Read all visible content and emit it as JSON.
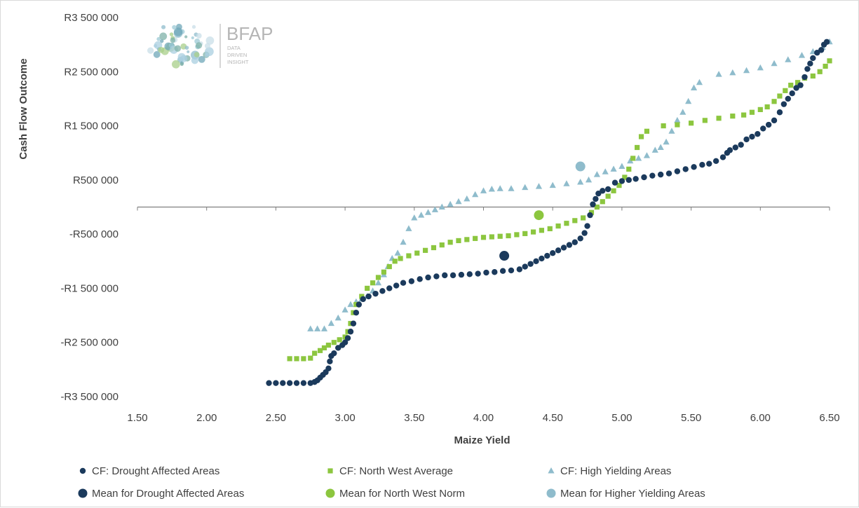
{
  "logo": {
    "brand": "BFAP",
    "tagline": [
      "DATA",
      "DRIVEN",
      "INSIGHT"
    ]
  },
  "chart_data": {
    "type": "scatter",
    "title": "",
    "xlabel": "Maize Yield",
    "ylabel": "Cash Flow Outcome",
    "xlim": [
      1.5,
      6.5
    ],
    "ylim": [
      -3500000,
      3500000
    ],
    "x_ticks": [
      1.5,
      2.0,
      2.5,
      3.0,
      3.5,
      4.0,
      4.5,
      5.0,
      5.5,
      6.0,
      6.5
    ],
    "x_tick_labels": [
      "1.50",
      "2.00",
      "2.50",
      "3.00",
      "3.50",
      "4.00",
      "4.50",
      "5.00",
      "5.50",
      "6.00",
      "6.50"
    ],
    "y_ticks": [
      3500000,
      2500000,
      1500000,
      500000,
      -500000,
      -1500000,
      -2500000,
      -3500000
    ],
    "y_tick_labels": [
      "R3 500 000",
      "R2 500 000",
      "R1 500 000",
      "R500 000",
      "-R500 000",
      "-R1 500 000",
      "-R2 500 000",
      "-R3 500 000"
    ],
    "grid": false,
    "legend_position": "bottom",
    "colors": {
      "drought": "#1b3a5c",
      "northwest": "#8cc63f",
      "high": "#8fbccc"
    },
    "series": [
      {
        "name": "CF: Drought Affected Areas",
        "marker": "circle-small",
        "color": "#1b3a5c",
        "points": [
          [
            2.45,
            -3250000
          ],
          [
            2.5,
            -3250000
          ],
          [
            2.55,
            -3250000
          ],
          [
            2.6,
            -3250000
          ],
          [
            2.65,
            -3250000
          ],
          [
            2.7,
            -3250000
          ],
          [
            2.75,
            -3250000
          ],
          [
            2.78,
            -3230000
          ],
          [
            2.8,
            -3200000
          ],
          [
            2.82,
            -3150000
          ],
          [
            2.84,
            -3100000
          ],
          [
            2.86,
            -3050000
          ],
          [
            2.88,
            -2980000
          ],
          [
            2.89,
            -2850000
          ],
          [
            2.9,
            -2750000
          ],
          [
            2.92,
            -2700000
          ],
          [
            2.95,
            -2600000
          ],
          [
            2.98,
            -2550000
          ],
          [
            3.0,
            -2500000
          ],
          [
            3.02,
            -2420000
          ],
          [
            3.04,
            -2300000
          ],
          [
            3.06,
            -2150000
          ],
          [
            3.08,
            -1950000
          ],
          [
            3.1,
            -1800000
          ],
          [
            3.13,
            -1700000
          ],
          [
            3.17,
            -1650000
          ],
          [
            3.22,
            -1600000
          ],
          [
            3.27,
            -1550000
          ],
          [
            3.32,
            -1500000
          ],
          [
            3.37,
            -1450000
          ],
          [
            3.42,
            -1400000
          ],
          [
            3.48,
            -1370000
          ],
          [
            3.54,
            -1330000
          ],
          [
            3.6,
            -1300000
          ],
          [
            3.66,
            -1280000
          ],
          [
            3.72,
            -1260000
          ],
          [
            3.78,
            -1260000
          ],
          [
            3.84,
            -1250000
          ],
          [
            3.9,
            -1240000
          ],
          [
            3.96,
            -1230000
          ],
          [
            4.02,
            -1210000
          ],
          [
            4.08,
            -1200000
          ],
          [
            4.14,
            -1180000
          ],
          [
            4.2,
            -1170000
          ],
          [
            4.26,
            -1150000
          ],
          [
            4.3,
            -1100000
          ],
          [
            4.34,
            -1050000
          ],
          [
            4.38,
            -1000000
          ],
          [
            4.42,
            -950000
          ],
          [
            4.46,
            -900000
          ],
          [
            4.5,
            -850000
          ],
          [
            4.54,
            -800000
          ],
          [
            4.58,
            -750000
          ],
          [
            4.62,
            -700000
          ],
          [
            4.66,
            -650000
          ],
          [
            4.7,
            -580000
          ],
          [
            4.73,
            -480000
          ],
          [
            4.75,
            -350000
          ],
          [
            4.77,
            -150000
          ],
          [
            4.79,
            50000
          ],
          [
            4.81,
            150000
          ],
          [
            4.83,
            250000
          ],
          [
            4.86,
            300000
          ],
          [
            4.9,
            330000
          ],
          [
            4.95,
            450000
          ],
          [
            5.0,
            480000
          ],
          [
            5.05,
            500000
          ],
          [
            5.1,
            520000
          ],
          [
            5.16,
            550000
          ],
          [
            5.22,
            580000
          ],
          [
            5.28,
            600000
          ],
          [
            5.34,
            620000
          ],
          [
            5.4,
            660000
          ],
          [
            5.46,
            700000
          ],
          [
            5.52,
            740000
          ],
          [
            5.58,
            780000
          ],
          [
            5.63,
            800000
          ],
          [
            5.68,
            850000
          ],
          [
            5.73,
            920000
          ],
          [
            5.76,
            1000000
          ],
          [
            5.78,
            1050000
          ],
          [
            5.82,
            1100000
          ],
          [
            5.86,
            1150000
          ],
          [
            5.9,
            1250000
          ],
          [
            5.94,
            1300000
          ],
          [
            5.98,
            1350000
          ],
          [
            6.02,
            1450000
          ],
          [
            6.06,
            1520000
          ],
          [
            6.1,
            1600000
          ],
          [
            6.14,
            1750000
          ],
          [
            6.17,
            1900000
          ],
          [
            6.2,
            2000000
          ],
          [
            6.23,
            2100000
          ],
          [
            6.26,
            2200000
          ],
          [
            6.29,
            2250000
          ],
          [
            6.32,
            2400000
          ],
          [
            6.34,
            2550000
          ],
          [
            6.36,
            2650000
          ],
          [
            6.38,
            2750000
          ],
          [
            6.41,
            2850000
          ],
          [
            6.44,
            2900000
          ],
          [
            6.46,
            3000000
          ],
          [
            6.48,
            3050000
          ]
        ]
      },
      {
        "name": "CF: North West Average",
        "marker": "square-small",
        "color": "#8cc63f",
        "points": [
          [
            2.6,
            -2800000
          ],
          [
            2.65,
            -2800000
          ],
          [
            2.7,
            -2800000
          ],
          [
            2.75,
            -2790000
          ],
          [
            2.78,
            -2700000
          ],
          [
            2.82,
            -2650000
          ],
          [
            2.85,
            -2600000
          ],
          [
            2.88,
            -2550000
          ],
          [
            2.92,
            -2500000
          ],
          [
            2.96,
            -2450000
          ],
          [
            3.0,
            -2400000
          ],
          [
            3.02,
            -2300000
          ],
          [
            3.04,
            -2150000
          ],
          [
            3.06,
            -1950000
          ],
          [
            3.08,
            -1800000
          ],
          [
            3.12,
            -1650000
          ],
          [
            3.16,
            -1500000
          ],
          [
            3.2,
            -1400000
          ],
          [
            3.24,
            -1300000
          ],
          [
            3.28,
            -1200000
          ],
          [
            3.32,
            -1100000
          ],
          [
            3.36,
            -1000000
          ],
          [
            3.4,
            -950000
          ],
          [
            3.46,
            -900000
          ],
          [
            3.52,
            -850000
          ],
          [
            3.58,
            -800000
          ],
          [
            3.64,
            -750000
          ],
          [
            3.7,
            -700000
          ],
          [
            3.76,
            -650000
          ],
          [
            3.82,
            -620000
          ],
          [
            3.88,
            -600000
          ],
          [
            3.94,
            -580000
          ],
          [
            4.0,
            -560000
          ],
          [
            4.06,
            -550000
          ],
          [
            4.12,
            -540000
          ],
          [
            4.18,
            -530000
          ],
          [
            4.24,
            -510000
          ],
          [
            4.3,
            -490000
          ],
          [
            4.36,
            -460000
          ],
          [
            4.42,
            -430000
          ],
          [
            4.48,
            -400000
          ],
          [
            4.54,
            -350000
          ],
          [
            4.6,
            -300000
          ],
          [
            4.66,
            -250000
          ],
          [
            4.72,
            -200000
          ],
          [
            4.78,
            -100000
          ],
          [
            4.82,
            0
          ],
          [
            4.86,
            100000
          ],
          [
            4.9,
            200000
          ],
          [
            4.94,
            300000
          ],
          [
            4.98,
            400000
          ],
          [
            5.02,
            550000
          ],
          [
            5.05,
            700000
          ],
          [
            5.08,
            900000
          ],
          [
            5.11,
            1100000
          ],
          [
            5.14,
            1300000
          ],
          [
            5.18,
            1400000
          ],
          [
            5.3,
            1500000
          ],
          [
            5.4,
            1520000
          ],
          [
            5.5,
            1550000
          ],
          [
            5.6,
            1600000
          ],
          [
            5.7,
            1640000
          ],
          [
            5.8,
            1680000
          ],
          [
            5.88,
            1700000
          ],
          [
            5.94,
            1750000
          ],
          [
            6.0,
            1800000
          ],
          [
            6.05,
            1850000
          ],
          [
            6.1,
            1950000
          ],
          [
            6.14,
            2050000
          ],
          [
            6.18,
            2150000
          ],
          [
            6.22,
            2250000
          ],
          [
            6.27,
            2300000
          ],
          [
            6.32,
            2380000
          ],
          [
            6.38,
            2420000
          ],
          [
            6.43,
            2500000
          ],
          [
            6.47,
            2600000
          ],
          [
            6.5,
            2700000
          ]
        ]
      },
      {
        "name": "CF: High Yielding Areas",
        "marker": "triangle-small",
        "color": "#8fbccc",
        "points": [
          [
            2.75,
            -2250000
          ],
          [
            2.8,
            -2250000
          ],
          [
            2.85,
            -2250000
          ],
          [
            2.9,
            -2150000
          ],
          [
            2.95,
            -2050000
          ],
          [
            3.0,
            -1900000
          ],
          [
            3.04,
            -1800000
          ],
          [
            3.08,
            -1750000
          ],
          [
            3.12,
            -1700000
          ],
          [
            3.16,
            -1650000
          ],
          [
            3.2,
            -1550000
          ],
          [
            3.24,
            -1400000
          ],
          [
            3.28,
            -1250000
          ],
          [
            3.31,
            -1100000
          ],
          [
            3.34,
            -950000
          ],
          [
            3.38,
            -850000
          ],
          [
            3.42,
            -650000
          ],
          [
            3.46,
            -400000
          ],
          [
            3.5,
            -200000
          ],
          [
            3.55,
            -150000
          ],
          [
            3.6,
            -100000
          ],
          [
            3.65,
            -50000
          ],
          [
            3.7,
            0
          ],
          [
            3.76,
            50000
          ],
          [
            3.82,
            100000
          ],
          [
            3.88,
            150000
          ],
          [
            3.94,
            230000
          ],
          [
            4.0,
            300000
          ],
          [
            4.06,
            330000
          ],
          [
            4.12,
            340000
          ],
          [
            4.2,
            340000
          ],
          [
            4.3,
            360000
          ],
          [
            4.4,
            380000
          ],
          [
            4.5,
            400000
          ],
          [
            4.6,
            430000
          ],
          [
            4.7,
            460000
          ],
          [
            4.76,
            500000
          ],
          [
            4.82,
            600000
          ],
          [
            4.88,
            650000
          ],
          [
            4.94,
            700000
          ],
          [
            5.0,
            750000
          ],
          [
            5.06,
            850000
          ],
          [
            5.12,
            900000
          ],
          [
            5.18,
            950000
          ],
          [
            5.24,
            1050000
          ],
          [
            5.28,
            1100000
          ],
          [
            5.32,
            1200000
          ],
          [
            5.36,
            1400000
          ],
          [
            5.4,
            1600000
          ],
          [
            5.44,
            1750000
          ],
          [
            5.48,
            1950000
          ],
          [
            5.52,
            2200000
          ],
          [
            5.56,
            2300000
          ],
          [
            5.7,
            2450000
          ],
          [
            5.8,
            2480000
          ],
          [
            5.9,
            2520000
          ],
          [
            6.0,
            2570000
          ],
          [
            6.1,
            2650000
          ],
          [
            6.2,
            2720000
          ],
          [
            6.3,
            2800000
          ],
          [
            6.38,
            2870000
          ],
          [
            6.45,
            2950000
          ],
          [
            6.5,
            3050000
          ]
        ]
      },
      {
        "name": "Mean for Drought Affected Areas",
        "marker": "circle-large",
        "color": "#1b3a5c",
        "points": [
          [
            4.15,
            -900000
          ]
        ]
      },
      {
        "name": "Mean for North West Norm",
        "marker": "circle-large",
        "color": "#8cc63f",
        "points": [
          [
            4.4,
            -150000
          ]
        ]
      },
      {
        "name": "Mean for Higher Yielding Areas",
        "marker": "circle-large",
        "color": "#8fbccc",
        "points": [
          [
            4.7,
            750000
          ]
        ]
      }
    ]
  }
}
